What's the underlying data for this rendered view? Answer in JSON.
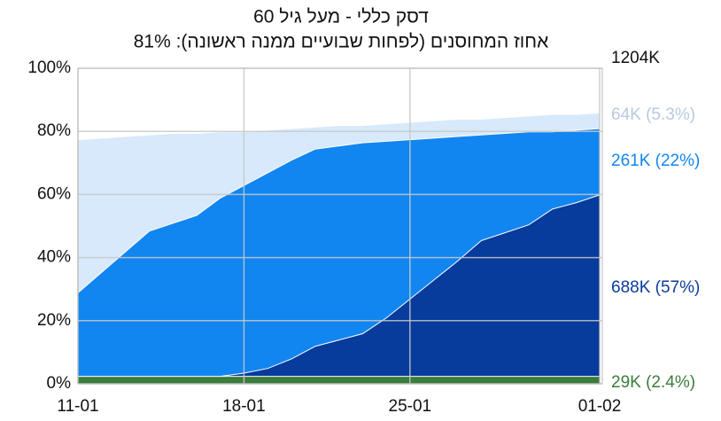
{
  "chart_data": {
    "type": "stacked-area",
    "title": "דסק כללי - מעל גיל 60",
    "subtitle": "אחוז המחוסנים (לפחות שבועיים ממנה ראשונה): 81%",
    "annotation": "1204K",
    "categories": [
      "11-01",
      null,
      null,
      null,
      null,
      null,
      null,
      "18-01",
      null,
      null,
      null,
      null,
      null,
      null,
      "25-01",
      null,
      null,
      null,
      null,
      null,
      null,
      null,
      "01-02"
    ],
    "ylim": [
      0,
      100
    ],
    "yticks": [
      {
        "value": 0,
        "label": "0%"
      },
      {
        "value": 20,
        "label": "20%"
      },
      {
        "value": 40,
        "label": "40%"
      },
      {
        "value": 60,
        "label": "60%"
      },
      {
        "value": 80,
        "label": "80%"
      },
      {
        "value": 100,
        "label": "100%"
      }
    ],
    "grid": true,
    "series": [
      {
        "name": "29K (2.4%)",
        "color": "#3b7d3b",
        "label_color": "#3b7d3b",
        "values": [
          2.5,
          2.5,
          2.5,
          2.5,
          2.5,
          2.5,
          2.5,
          2.5,
          2.5,
          2.5,
          2.5,
          2.5,
          2.5,
          2.5,
          2.5,
          2.5,
          2.5,
          2.5,
          2.5,
          2.5,
          2.5,
          2.5,
          2.5
        ]
      },
      {
        "name": "688K (57%)",
        "color": "#073b9c",
        "label_color": "#0a3c9e",
        "values": [
          0,
          0,
          0,
          0,
          0,
          0,
          0,
          1,
          2.5,
          5.5,
          9.5,
          11.5,
          13.5,
          18.5,
          24.5,
          30.5,
          36.5,
          43,
          45.5,
          48,
          53,
          55,
          57.5
        ]
      },
      {
        "name": "261K (22%)",
        "color": "#1286f0",
        "label_color": "#1286f0",
        "values": [
          26.5,
          33,
          39.5,
          46,
          48.5,
          51,
          56.5,
          59.5,
          62,
          63,
          62.5,
          61.5,
          60.5,
          56,
          50.5,
          45,
          39.5,
          33.5,
          31.5,
          29.5,
          24.5,
          23,
          21
        ]
      },
      {
        "name": "64K (5.3%)",
        "color": "#d7e9fb",
        "label_color": "#b8cade",
        "values": [
          48.5,
          42.5,
          36.5,
          30.5,
          28.5,
          26,
          21,
          17,
          13.5,
          10,
          7,
          6.5,
          5.5,
          5.5,
          5.5,
          5.5,
          5.5,
          5,
          5,
          5,
          5.5,
          5,
          5
        ]
      }
    ]
  }
}
